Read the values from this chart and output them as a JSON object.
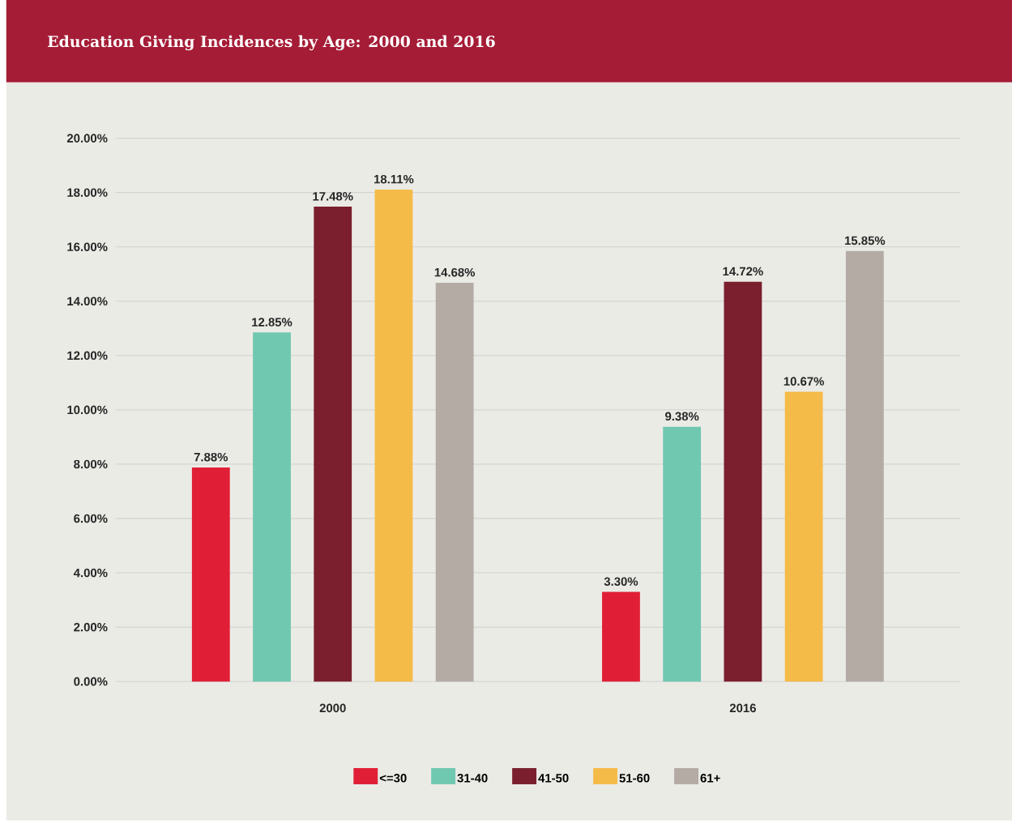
{
  "chart_data": {
    "type": "bar",
    "title": "Education Giving Incidences by Age: 2000 and 2016",
    "categories": [
      "2000",
      "2016"
    ],
    "series": [
      {
        "name": "<=30",
        "color": "#e01f36",
        "values": [
          7.88,
          3.3
        ],
        "value_labels": [
          "7.88%",
          "3.30%"
        ]
      },
      {
        "name": "31-40",
        "color": "#70c8b0",
        "values": [
          12.85,
          9.38
        ],
        "value_labels": [
          "12.85%",
          "9.38%"
        ]
      },
      {
        "name": "41-50",
        "color": "#7b1f2e",
        "values": [
          17.48,
          14.72
        ],
        "value_labels": [
          "17.48%",
          "14.72%"
        ]
      },
      {
        "name": "51-60",
        "color": "#f5bb48",
        "values": [
          18.11,
          10.67
        ],
        "value_labels": [
          "18.11%",
          "10.67%"
        ]
      },
      {
        "name": "61+",
        "color": "#b4aba5",
        "values": [
          14.68,
          15.85
        ],
        "value_labels": [
          "14.68%",
          "15.85%"
        ]
      }
    ],
    "ylim": [
      0,
      20
    ],
    "yticks": [
      {
        "value": 0,
        "label": "0.00%"
      },
      {
        "value": 2,
        "label": "2.00%"
      },
      {
        "value": 4,
        "label": "4.00%"
      },
      {
        "value": 6,
        "label": "6.00%"
      },
      {
        "value": 8,
        "label": "8.00%"
      },
      {
        "value": 10,
        "label": "10.00%"
      },
      {
        "value": 12,
        "label": "12.00%"
      },
      {
        "value": 14,
        "label": "14.00%"
      },
      {
        "value": 16,
        "label": "16.00%"
      },
      {
        "value": 18,
        "label": "18.00%"
      },
      {
        "value": 20,
        "label": "20.00%"
      }
    ],
    "grid": "y",
    "legend": "bottom"
  }
}
